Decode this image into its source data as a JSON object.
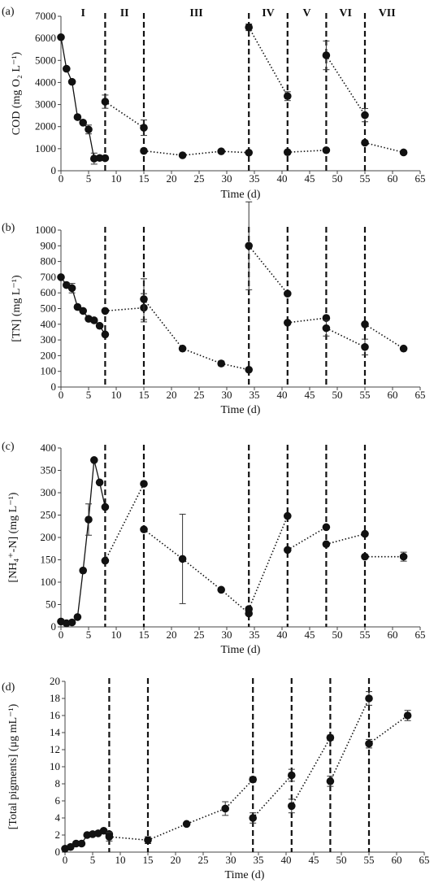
{
  "chart_data": [
    {
      "type": "scatter",
      "panel_label": "(a)",
      "ylabel": "COD (mg O₂ L⁻¹)",
      "xlabel": "Time (d)",
      "ylim": [
        0,
        7000
      ],
      "xlim": [
        0,
        65
      ],
      "yticks": [
        0,
        1000,
        2000,
        3000,
        4000,
        5000,
        6000,
        7000
      ],
      "xticks": [
        0,
        5,
        10,
        15,
        20,
        25,
        30,
        35,
        40,
        45,
        50,
        55,
        60,
        65
      ],
      "phase_lines": [
        8,
        15,
        34,
        41,
        48,
        55
      ],
      "phases": [
        {
          "label": "I",
          "x": 4
        },
        {
          "label": "II",
          "x": 11.5
        },
        {
          "label": "III",
          "x": 24.5
        },
        {
          "label": "IV",
          "x": 37.5
        },
        {
          "label": "V",
          "x": 44.5
        },
        {
          "label": "VI",
          "x": 51.5
        },
        {
          "label": "VII",
          "x": 59
        }
      ],
      "series": [
        {
          "x": [
            0,
            1,
            2,
            3,
            4,
            5,
            6,
            7,
            8
          ],
          "y": [
            6050,
            4620,
            4030,
            2430,
            2180,
            1870,
            550,
            580,
            570
          ],
          "err": [
            0,
            0,
            0,
            0,
            0,
            200,
            250,
            0,
            0
          ],
          "line": "solid"
        },
        {
          "x": [
            8,
            15
          ],
          "y": [
            3130,
            1950
          ],
          "err": [
            300,
            350
          ],
          "line": "dotted"
        },
        {
          "x": [
            15,
            22,
            29,
            34
          ],
          "y": [
            900,
            700,
            880,
            820
          ],
          "err": [
            0,
            0,
            0,
            0
          ],
          "line": "dotted"
        },
        {
          "x": [
            34,
            41
          ],
          "y": [
            6500,
            3380
          ],
          "err": [
            150,
            200
          ],
          "line": "dotted"
        },
        {
          "x": [
            41,
            48
          ],
          "y": [
            840,
            930
          ],
          "err": [
            0,
            0
          ],
          "line": "dotted"
        },
        {
          "x": [
            48,
            55
          ],
          "y": [
            5230,
            2520
          ],
          "err": [
            650,
            300
          ],
          "line": "dotted"
        },
        {
          "x": [
            55,
            62
          ],
          "y": [
            1270,
            830
          ],
          "err": [
            0,
            0
          ],
          "line": "dotted"
        },
        {
          "x": [],
          "y": [],
          "err": [],
          "line": "none"
        }
      ]
    },
    {
      "type": "scatter",
      "panel_label": "(b)",
      "ylabel": "[TN] (mg L⁻¹)",
      "xlabel": "Time (d)",
      "ylim": [
        0,
        1000
      ],
      "xlim": [
        0,
        65
      ],
      "yticks": [
        0,
        100,
        200,
        300,
        400,
        500,
        600,
        700,
        800,
        900,
        1000
      ],
      "xticks": [
        0,
        5,
        10,
        15,
        20,
        25,
        30,
        35,
        40,
        45,
        50,
        55,
        60,
        65
      ],
      "phase_lines": [
        8,
        15,
        34,
        41,
        48,
        55
      ],
      "phases": [],
      "series": [
        {
          "x": [
            0,
            1,
            2,
            3,
            4,
            5,
            6,
            7,
            8
          ],
          "y": [
            700,
            650,
            630,
            510,
            485,
            435,
            425,
            390,
            335
          ],
          "err": [
            0,
            0,
            30,
            0,
            0,
            0,
            0,
            0,
            0
          ],
          "line": "solid"
        },
        {
          "x": [
            8,
            15
          ],
          "y": [
            485,
            505
          ],
          "err": [
            0,
            90
          ],
          "line": "dotted"
        },
        {
          "x": [
            15,
            22,
            29,
            34
          ],
          "y": [
            560,
            245,
            150,
            110
          ],
          "err": [
            130,
            0,
            15,
            0
          ],
          "line": "dotted"
        },
        {
          "x": [
            34,
            41
          ],
          "y": [
            900,
            595
          ],
          "err": [
            280,
            0
          ],
          "line": "dotted"
        },
        {
          "x": [
            41,
            48
          ],
          "y": [
            410,
            440
          ],
          "err": [
            0,
            0
          ],
          "line": "dotted"
        },
        {
          "x": [
            48,
            55
          ],
          "y": [
            375,
            255
          ],
          "err": [
            50,
            50
          ],
          "line": "dotted"
        },
        {
          "x": [
            55,
            62
          ],
          "y": [
            400,
            245
          ],
          "err": [
            0,
            0
          ],
          "line": "dotted"
        },
        {
          "x": [],
          "y": [],
          "err": [],
          "line": "none"
        }
      ]
    },
    {
      "type": "scatter",
      "panel_label": "(c)",
      "ylabel": "[NH₄⁺-N] (mg L⁻¹)",
      "xlabel": "Time (d)",
      "ylim": [
        0,
        400
      ],
      "xlim": [
        0,
        65
      ],
      "yticks": [
        0,
        50,
        100,
        150,
        200,
        250,
        300,
        350,
        400
      ],
      "xticks": [
        0,
        5,
        10,
        15,
        20,
        25,
        30,
        35,
        40,
        45,
        50,
        55,
        60,
        65
      ],
      "phase_lines": [
        8,
        15,
        34,
        41,
        48,
        55
      ],
      "phases": [],
      "series": [
        {
          "x": [
            0,
            1,
            2,
            3,
            4,
            5,
            6,
            7,
            8
          ],
          "y": [
            12,
            8,
            10,
            22,
            126,
            240,
            373,
            323,
            268
          ],
          "err": [
            0,
            0,
            0,
            0,
            0,
            35,
            0,
            0,
            0
          ],
          "line": "solid"
        },
        {
          "x": [
            8,
            15
          ],
          "y": [
            148,
            320
          ],
          "err": [
            0,
            0
          ],
          "line": "dotted"
        },
        {
          "x": [
            15,
            22,
            29,
            34
          ],
          "y": [
            218,
            152,
            83,
            30
          ],
          "err": [
            0,
            100,
            0,
            0
          ],
          "line": "dotted"
        },
        {
          "x": [
            34,
            41
          ],
          "y": [
            40,
            248
          ],
          "err": [
            0,
            0
          ],
          "line": "dotted"
        },
        {
          "x": [
            41,
            48
          ],
          "y": [
            172,
            223
          ],
          "err": [
            0,
            0
          ],
          "line": "dotted"
        },
        {
          "x": [
            48,
            55
          ],
          "y": [
            185,
            208
          ],
          "err": [
            0,
            0
          ],
          "line": "dotted"
        },
        {
          "x": [
            55,
            62
          ],
          "y": [
            157,
            157
          ],
          "err": [
            0,
            10
          ],
          "line": "dotted"
        },
        {
          "x": [],
          "y": [],
          "err": [],
          "line": "none"
        }
      ]
    },
    {
      "type": "scatter",
      "panel_label": "(d)",
      "ylabel": "[Total pigments] (μg mL⁻¹)",
      "xlabel": "Time (d)",
      "ylim": [
        0,
        20
      ],
      "xlim": [
        0,
        65
      ],
      "yticks": [
        0,
        2,
        4,
        6,
        8,
        10,
        12,
        14,
        16,
        18,
        20
      ],
      "xticks": [
        0,
        5,
        10,
        15,
        20,
        25,
        30,
        35,
        40,
        45,
        50,
        55,
        60,
        65
      ],
      "phase_lines": [
        8,
        15,
        34,
        41,
        48,
        55
      ],
      "phases": [],
      "series": [
        {
          "x": [
            0,
            1,
            2,
            3,
            4,
            5,
            6,
            7,
            8
          ],
          "y": [
            0.4,
            0.6,
            1.0,
            1.0,
            2.0,
            2.1,
            2.2,
            2.5,
            2.1
          ],
          "err": [
            0,
            0,
            0,
            0,
            0,
            0,
            0,
            0,
            0
          ],
          "line": "solid"
        },
        {
          "x": [
            8,
            15,
            22,
            29,
            34
          ],
          "y": [
            1.8,
            1.4,
            3.3,
            5.1,
            8.5
          ],
          "err": [
            0.5,
            0.4,
            0,
            0.8,
            0.3
          ],
          "line": "dotted"
        },
        {
          "x": [
            34,
            41
          ],
          "y": [
            4.0,
            9.0
          ],
          "err": [
            0.6,
            0.7
          ],
          "line": "dotted"
        },
        {
          "x": [
            41,
            48
          ],
          "y": [
            5.4,
            13.4
          ],
          "err": [
            0.8,
            0.3
          ],
          "line": "dotted"
        },
        {
          "x": [
            48,
            55
          ],
          "y": [
            8.3,
            18.0
          ],
          "err": [
            0.6,
            0.8
          ],
          "line": "dotted"
        },
        {
          "x": [
            55,
            62
          ],
          "y": [
            12.7,
            16.0
          ],
          "err": [
            0.5,
            0.6
          ],
          "line": "dotted"
        },
        {
          "x": [],
          "y": [],
          "err": [],
          "line": "none"
        },
        {
          "x": [],
          "y": [],
          "err": [],
          "line": "none"
        }
      ]
    }
  ]
}
